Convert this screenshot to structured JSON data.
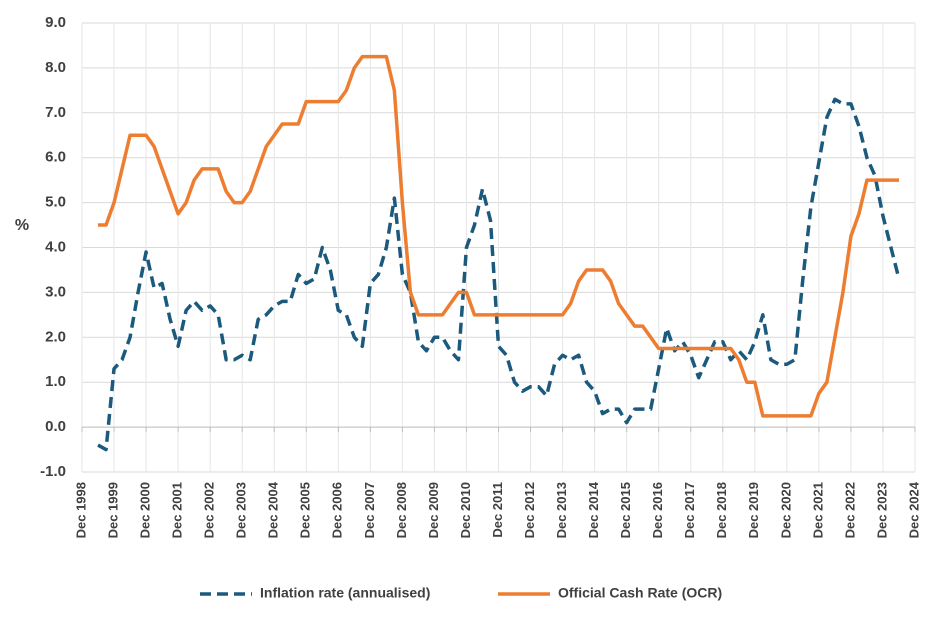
{
  "chart_data": {
    "type": "line",
    "ylabel": "%",
    "x": [
      "1999-06",
      "1999-09",
      "1999-12",
      "2000-03",
      "2000-06",
      "2000-09",
      "2000-12",
      "2001-03",
      "2001-06",
      "2001-09",
      "2001-12",
      "2002-03",
      "2002-06",
      "2002-09",
      "2002-12",
      "2003-03",
      "2003-06",
      "2003-09",
      "2003-12",
      "2004-03",
      "2004-06",
      "2004-09",
      "2004-12",
      "2005-03",
      "2005-06",
      "2005-09",
      "2005-12",
      "2006-03",
      "2006-06",
      "2006-09",
      "2006-12",
      "2007-03",
      "2007-06",
      "2007-09",
      "2007-12",
      "2008-03",
      "2008-06",
      "2008-09",
      "2008-12",
      "2009-03",
      "2009-06",
      "2009-09",
      "2009-12",
      "2010-03",
      "2010-06",
      "2010-09",
      "2010-12",
      "2011-03",
      "2011-06",
      "2011-09",
      "2011-12",
      "2012-03",
      "2012-06",
      "2012-09",
      "2012-12",
      "2013-03",
      "2013-06",
      "2013-09",
      "2013-12",
      "2014-03",
      "2014-06",
      "2014-09",
      "2014-12",
      "2015-03",
      "2015-06",
      "2015-09",
      "2015-12",
      "2016-03",
      "2016-06",
      "2016-09",
      "2016-12",
      "2017-03",
      "2017-06",
      "2017-09",
      "2017-12",
      "2018-03",
      "2018-06",
      "2018-09",
      "2018-12",
      "2019-03",
      "2019-06",
      "2019-09",
      "2019-12",
      "2020-03",
      "2020-06",
      "2020-09",
      "2020-12",
      "2021-03",
      "2021-06",
      "2021-09",
      "2021-12",
      "2022-03",
      "2022-06",
      "2022-09",
      "2022-12",
      "2023-03",
      "2023-06",
      "2023-09",
      "2023-12",
      "2024-03",
      "2024-06"
    ],
    "series": [
      {
        "name": "Inflation rate (annualised)",
        "color": "#1c5a7d",
        "dash": true,
        "values": [
          -0.4,
          -0.5,
          1.3,
          1.5,
          2.0,
          3.0,
          3.9,
          3.1,
          3.2,
          2.4,
          1.8,
          2.6,
          2.8,
          2.6,
          2.7,
          2.5,
          1.5,
          1.5,
          1.6,
          1.5,
          2.4,
          2.5,
          2.7,
          2.8,
          2.8,
          3.4,
          3.2,
          3.3,
          4.0,
          3.5,
          2.6,
          2.5,
          2.0,
          1.8,
          3.2,
          3.4,
          4.0,
          5.1,
          3.4,
          3.0,
          1.9,
          1.7,
          2.0,
          2.0,
          1.7,
          1.5,
          4.0,
          4.5,
          5.3,
          4.6,
          1.8,
          1.6,
          1.0,
          0.8,
          0.9,
          0.9,
          0.7,
          1.4,
          1.6,
          1.5,
          1.6,
          1.0,
          0.8,
          0.3,
          0.4,
          0.4,
          0.1,
          0.4,
          0.4,
          0.4,
          1.3,
          2.2,
          1.7,
          1.9,
          1.6,
          1.1,
          1.5,
          1.9,
          1.9,
          1.5,
          1.7,
          1.5,
          1.9,
          2.5,
          1.5,
          1.4,
          1.4,
          1.5,
          3.3,
          4.9,
          5.9,
          6.9,
          7.3,
          7.2,
          7.2,
          6.7,
          6.0,
          5.6,
          4.7,
          4.0,
          3.3
        ]
      },
      {
        "name": "Official Cash Rate (OCR)",
        "color": "#ed7d31",
        "dash": false,
        "values": [
          4.5,
          4.5,
          5.0,
          5.75,
          6.5,
          6.5,
          6.5,
          6.25,
          5.75,
          5.25,
          4.75,
          5.0,
          5.5,
          5.75,
          5.75,
          5.75,
          5.25,
          5.0,
          5.0,
          5.25,
          5.75,
          6.25,
          6.5,
          6.75,
          6.75,
          6.75,
          7.25,
          7.25,
          7.25,
          7.25,
          7.25,
          7.5,
          8.0,
          8.25,
          8.25,
          8.25,
          8.25,
          7.5,
          5.0,
          3.0,
          2.5,
          2.5,
          2.5,
          2.5,
          2.75,
          3.0,
          3.0,
          2.5,
          2.5,
          2.5,
          2.5,
          2.5,
          2.5,
          2.5,
          2.5,
          2.5,
          2.5,
          2.5,
          2.5,
          2.75,
          3.25,
          3.5,
          3.5,
          3.5,
          3.25,
          2.75,
          2.5,
          2.25,
          2.25,
          2.0,
          1.75,
          1.75,
          1.75,
          1.75,
          1.75,
          1.75,
          1.75,
          1.75,
          1.75,
          1.75,
          1.5,
          1.0,
          1.0,
          0.25,
          0.25,
          0.25,
          0.25,
          0.25,
          0.25,
          0.25,
          0.75,
          1.0,
          2.0,
          3.0,
          4.25,
          4.75,
          5.5,
          5.5,
          5.5,
          5.5,
          5.5
        ]
      }
    ],
    "xlim": [
      "1998-12",
      "2024-12"
    ],
    "xticks": [
      {
        "value": "1998-12",
        "label": "Dec 1998"
      },
      {
        "value": "1999-12",
        "label": "Dec 1999"
      },
      {
        "value": "2000-12",
        "label": "Dec 2000"
      },
      {
        "value": "2001-12",
        "label": "Dec 2001"
      },
      {
        "value": "2002-12",
        "label": "Dec 2002"
      },
      {
        "value": "2003-12",
        "label": "Dec 2003"
      },
      {
        "value": "2004-12",
        "label": "Dec 2004"
      },
      {
        "value": "2005-12",
        "label": "Dec 2005"
      },
      {
        "value": "2006-12",
        "label": "Dec 2006"
      },
      {
        "value": "2007-12",
        "label": "Dec 2007"
      },
      {
        "value": "2008-12",
        "label": "Dec 2008"
      },
      {
        "value": "2009-12",
        "label": "Dec 2009"
      },
      {
        "value": "2010-12",
        "label": "Dec 2010"
      },
      {
        "value": "2011-12",
        "label": "Dec 2011"
      },
      {
        "value": "2012-12",
        "label": "Dec 2012"
      },
      {
        "value": "2013-12",
        "label": "Dec 2013"
      },
      {
        "value": "2014-12",
        "label": "Dec 2014"
      },
      {
        "value": "2015-12",
        "label": "Dec 2015"
      },
      {
        "value": "2016-12",
        "label": "Dec 2016"
      },
      {
        "value": "2017-12",
        "label": "Dec 2017"
      },
      {
        "value": "2018-12",
        "label": "Dec 2018"
      },
      {
        "value": "2019-12",
        "label": "Dec 2019"
      },
      {
        "value": "2020-12",
        "label": "Dec 2020"
      },
      {
        "value": "2021-12",
        "label": "Dec 2021"
      },
      {
        "value": "2022-12",
        "label": "Dec 2022"
      },
      {
        "value": "2023-12",
        "label": "Dec 2023"
      },
      {
        "value": "2024-12",
        "label": "Dec 2024"
      }
    ],
    "ylim": [
      -1,
      9
    ],
    "yticks": [
      {
        "value": -1,
        "label": "-1.0"
      },
      {
        "value": 0,
        "label": "0.0"
      },
      {
        "value": 1,
        "label": "1.0"
      },
      {
        "value": 2,
        "label": "2.0"
      },
      {
        "value": 3,
        "label": "3.0"
      },
      {
        "value": 4,
        "label": "4.0"
      },
      {
        "value": 5,
        "label": "5.0"
      },
      {
        "value": 6,
        "label": "6.0"
      },
      {
        "value": 7,
        "label": "7.0"
      },
      {
        "value": 8,
        "label": "8.0"
      },
      {
        "value": 9,
        "label": "9.0"
      }
    ],
    "grid": true,
    "legend": "bottom"
  }
}
